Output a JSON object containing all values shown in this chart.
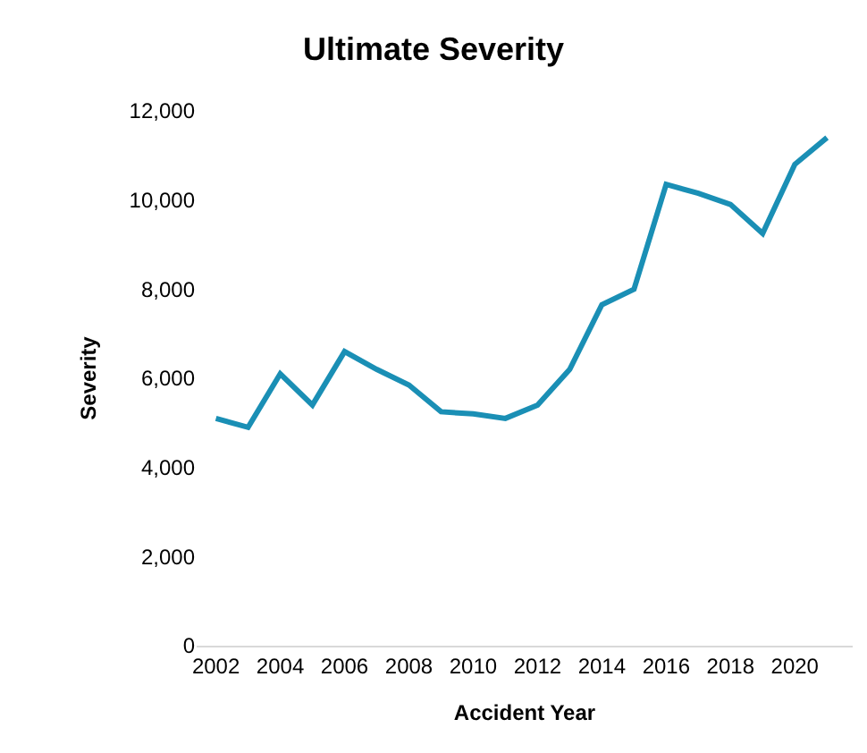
{
  "chart_data": {
    "type": "line",
    "title": "Ultimate Severity",
    "xlabel": "Accident Year",
    "ylabel": "Severity",
    "x": [
      2002,
      2003,
      2004,
      2005,
      2006,
      2007,
      2008,
      2009,
      2010,
      2011,
      2012,
      2013,
      2014,
      2015,
      2016,
      2017,
      2018,
      2019,
      2020,
      2021
    ],
    "series": [
      {
        "color": "#1a8fb5",
        "values": [
          5100,
          4900,
          6100,
          5400,
          6600,
          6200,
          5850,
          5250,
          5200,
          5100,
          5400,
          6200,
          7650,
          8000,
          10350,
          10150,
          9900,
          9250,
          10800,
          11400
        ]
      }
    ],
    "xlim": [
      2001.4,
      2021.8
    ],
    "xticks": [
      2002,
      2004,
      2006,
      2008,
      2010,
      2012,
      2014,
      2016,
      2018,
      2020
    ],
    "ylim": [
      0,
      12000
    ],
    "yticks": [
      {
        "value": 0,
        "label": "0"
      },
      {
        "value": 2000,
        "label": "2,000"
      },
      {
        "value": 4000,
        "label": "4,000"
      },
      {
        "value": 6000,
        "label": "6,000"
      },
      {
        "value": 8000,
        "label": "8,000"
      },
      {
        "value": 10000,
        "label": "10,000"
      },
      {
        "value": 12000,
        "label": "12,000"
      }
    ],
    "legend": false,
    "marker": "none",
    "line_style": "solid"
  }
}
